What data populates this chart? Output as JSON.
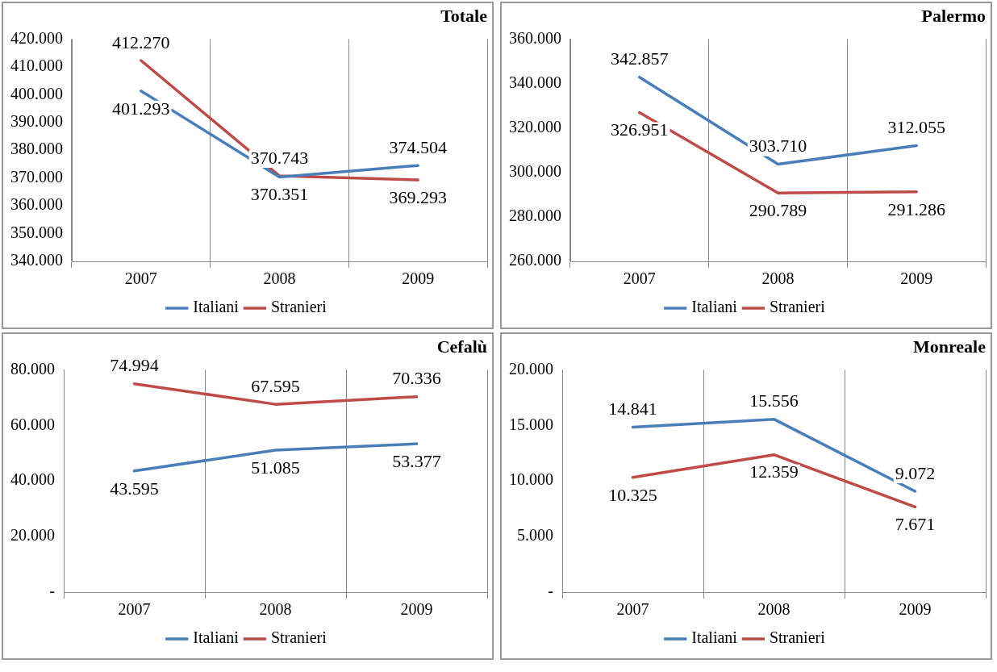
{
  "chart_data": [
    {
      "type": "line",
      "title": "Totale",
      "categories": [
        "2007",
        "2008",
        "2009"
      ],
      "series": [
        {
          "name": "Italiani",
          "color": "#4a7ebb",
          "values": [
            401293,
            370351,
            374504
          ],
          "value_labels": [
            "401.293",
            "370.351",
            "374.504"
          ]
        },
        {
          "name": "Stranieri",
          "color": "#be4b48",
          "values": [
            412270,
            370743,
            369293
          ],
          "value_labels": [
            "412.270",
            "370.743",
            "369.293"
          ]
        }
      ],
      "ylim": [
        340000,
        420000
      ],
      "yticks": [
        {
          "value": 340000,
          "label": "340.000"
        },
        {
          "value": 350000,
          "label": "350.000"
        },
        {
          "value": 360000,
          "label": "360.000"
        },
        {
          "value": 370000,
          "label": "370.000"
        },
        {
          "value": 380000,
          "label": "380.000"
        },
        {
          "value": 390000,
          "label": "390.000"
        },
        {
          "value": 400000,
          "label": "400.000"
        },
        {
          "value": 410000,
          "label": "410.000"
        },
        {
          "value": 420000,
          "label": "420.000"
        }
      ],
      "grid": "x",
      "legend": "bottom",
      "marker": "none",
      "line_style": "solid"
    },
    {
      "type": "line",
      "title": "Palermo",
      "categories": [
        "2007",
        "2008",
        "2009"
      ],
      "series": [
        {
          "name": "Italiani",
          "color": "#4a7ebb",
          "values": [
            342857,
            303710,
            312055
          ],
          "value_labels": [
            "342.857",
            "303.710",
            "312.055"
          ]
        },
        {
          "name": "Stranieri",
          "color": "#be4b48",
          "values": [
            326951,
            290789,
            291286
          ],
          "value_labels": [
            "326.951",
            "290.789",
            "291.286"
          ]
        }
      ],
      "ylim": [
        260000,
        360000
      ],
      "yticks": [
        {
          "value": 260000,
          "label": "260.000"
        },
        {
          "value": 280000,
          "label": "280.000"
        },
        {
          "value": 300000,
          "label": "300.000"
        },
        {
          "value": 320000,
          "label": "320.000"
        },
        {
          "value": 340000,
          "label": "340.000"
        },
        {
          "value": 360000,
          "label": "360.000"
        }
      ],
      "grid": "x",
      "legend": "bottom",
      "marker": "none",
      "line_style": "solid"
    },
    {
      "type": "line",
      "title": "Cefalù",
      "categories": [
        "2007",
        "2008",
        "2009"
      ],
      "series": [
        {
          "name": "Italiani",
          "color": "#4a7ebb",
          "values": [
            43595,
            51085,
            53377
          ],
          "value_labels": [
            "43.595",
            "51.085",
            "53.377"
          ]
        },
        {
          "name": "Stranieri",
          "color": "#be4b48",
          "values": [
            74994,
            67595,
            70336
          ],
          "value_labels": [
            "74.994",
            "67.595",
            "70.336"
          ]
        }
      ],
      "ylim": [
        0,
        80000
      ],
      "yticks": [
        {
          "value": 0,
          "label": "-"
        },
        {
          "value": 20000,
          "label": "20.000"
        },
        {
          "value": 40000,
          "label": "40.000"
        },
        {
          "value": 60000,
          "label": "60.000"
        },
        {
          "value": 80000,
          "label": "80.000"
        }
      ],
      "grid": "x",
      "legend": "bottom",
      "marker": "none",
      "line_style": "solid"
    },
    {
      "type": "line",
      "title": "Monreale",
      "categories": [
        "2007",
        "2008",
        "2009"
      ],
      "series": [
        {
          "name": "Italiani",
          "color": "#4a7ebb",
          "values": [
            14841,
            15556,
            9072
          ],
          "value_labels": [
            "14.841",
            "15.556",
            "9.072"
          ]
        },
        {
          "name": "Stranieri",
          "color": "#be4b48",
          "values": [
            10325,
            12359,
            7671
          ],
          "value_labels": [
            "10.325",
            "12.359",
            "7.671"
          ]
        }
      ],
      "ylim": [
        0,
        20000
      ],
      "yticks": [
        {
          "value": 0,
          "label": "-"
        },
        {
          "value": 5000,
          "label": "5.000"
        },
        {
          "value": 10000,
          "label": "10.000"
        },
        {
          "value": 15000,
          "label": "15.000"
        },
        {
          "value": 20000,
          "label": "20.000"
        }
      ],
      "grid": "x",
      "legend": "bottom",
      "marker": "none",
      "line_style": "solid"
    }
  ]
}
